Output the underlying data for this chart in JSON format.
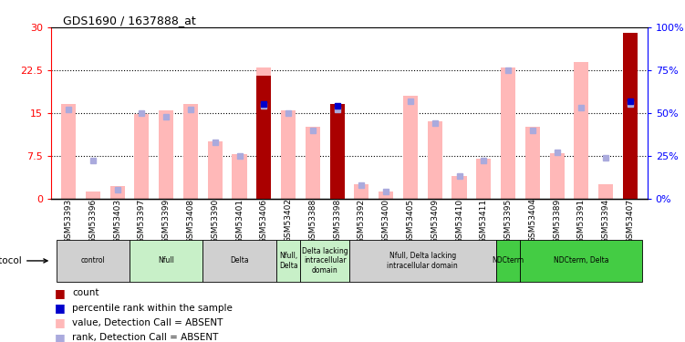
{
  "title": "GDS1690 / 1637888_at",
  "samples": [
    "GSM53393",
    "GSM53396",
    "GSM53403",
    "GSM53397",
    "GSM53399",
    "GSM53408",
    "GSM53390",
    "GSM53401",
    "GSM53406",
    "GSM53402",
    "GSM53388",
    "GSM53398",
    "GSM53392",
    "GSM53400",
    "GSM53405",
    "GSM53409",
    "GSM53410",
    "GSM53411",
    "GSM53395",
    "GSM53404",
    "GSM53389",
    "GSM53391",
    "GSM53394",
    "GSM53407"
  ],
  "value_absent": [
    16.5,
    1.2,
    2.2,
    14.8,
    15.5,
    16.5,
    10.0,
    7.8,
    23.0,
    15.5,
    12.5,
    16.0,
    2.5,
    1.2,
    18.0,
    13.5,
    4.0,
    7.0,
    23.0,
    12.5,
    8.0,
    24.0,
    2.5,
    29.0
  ],
  "rank_absent": [
    52,
    22,
    5,
    50,
    48,
    52,
    33,
    25,
    54,
    50,
    40,
    52,
    8,
    4,
    57,
    44,
    13,
    22,
    75,
    40,
    27,
    53,
    24,
    55
  ],
  "count": [
    0,
    0,
    0,
    0,
    0,
    0,
    0,
    0,
    21.5,
    0,
    0,
    16.5,
    0,
    0,
    0,
    0,
    0,
    0,
    0,
    0,
    0,
    0,
    0,
    29.0
  ],
  "percentile_rank": [
    0,
    0,
    0,
    0,
    0,
    0,
    0,
    0,
    55,
    0,
    0,
    54,
    0,
    0,
    0,
    0,
    0,
    0,
    0,
    0,
    0,
    0,
    0,
    57
  ],
  "groups": [
    {
      "label": "control",
      "start": 0,
      "end": 2,
      "color": "#d0d0d0"
    },
    {
      "label": "Nfull",
      "start": 3,
      "end": 5,
      "color": "#c8f0c8"
    },
    {
      "label": "Delta",
      "start": 6,
      "end": 8,
      "color": "#d0d0d0"
    },
    {
      "label": "Nfull,\nDelta",
      "start": 9,
      "end": 9,
      "color": "#c8f0c8"
    },
    {
      "label": "Delta lacking\nintracellular\ndomain",
      "start": 10,
      "end": 11,
      "color": "#c8f0c8"
    },
    {
      "label": "Nfull, Delta lacking\nintracellular domain",
      "start": 12,
      "end": 17,
      "color": "#d0d0d0"
    },
    {
      "label": "NDCterm",
      "start": 18,
      "end": 18,
      "color": "#44cc44"
    },
    {
      "label": "NDCterm, Delta",
      "start": 19,
      "end": 23,
      "color": "#44cc44"
    }
  ],
  "ylim_left": [
    0,
    30
  ],
  "ylim_right": [
    0,
    100
  ],
  "yticks_left": [
    0,
    7.5,
    15,
    22.5,
    30
  ],
  "yticks_right": [
    0,
    25,
    50,
    75,
    100
  ],
  "color_value_absent": "#ffb8b8",
  "color_rank_absent": "#aaaadd",
  "color_count": "#aa0000",
  "color_percentile": "#0000cc",
  "bar_width": 0.6
}
